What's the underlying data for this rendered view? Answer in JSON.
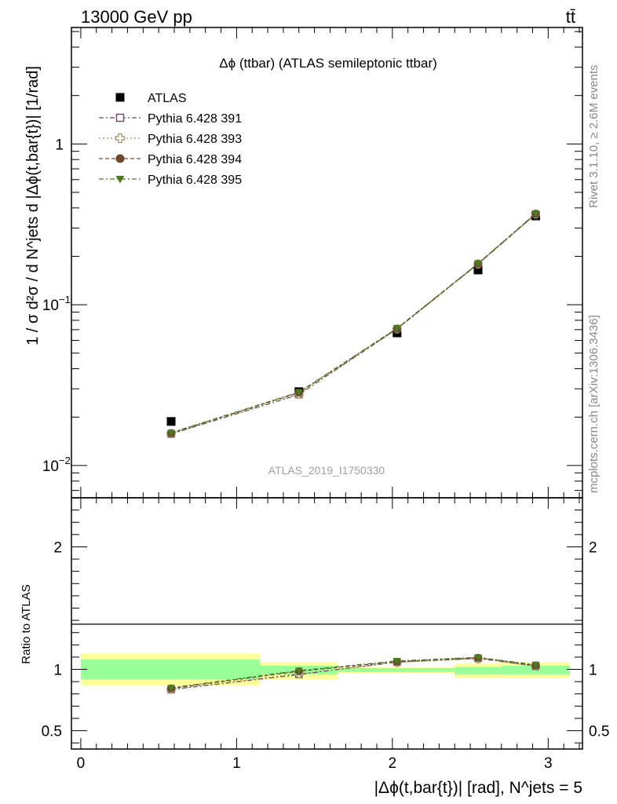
{
  "header": {
    "energy_label": "13000 GeV pp",
    "process_label": "tt̄"
  },
  "side_labels": {
    "rivet": "Rivet 3.1.10, ≥ 2.6M events",
    "mcplots": "mcplots.cern.ch [arXiv:1306.3436]"
  },
  "watermark": "ATLAS_2019_I1750330",
  "chart_data": [
    {
      "type": "scatter",
      "title": "Δϕ (ttbar) (ATLAS semileptonic ttbar)",
      "ylabel": "1 / σ d²σ / d N^jets d |Δϕ(t,bar{t})| [1/rad]",
      "xlabel": "",
      "yscale": "log",
      "xlim": [
        -0.06,
        3.22
      ],
      "ylim": [
        0.0063,
        5.3
      ],
      "ytick_labels": [
        {
          "value": 1,
          "label": "1"
        },
        {
          "value": 0.1,
          "label": "10",
          "exp": "−1"
        },
        {
          "value": 0.01,
          "label": "10",
          "exp": "−2"
        }
      ],
      "legend_position": "top-left",
      "x": [
        0.58,
        1.4,
        2.03,
        2.55,
        2.92
      ],
      "series": [
        {
          "name": "ATLAS",
          "marker": "filled-square",
          "color": "#000000",
          "line": false,
          "values": [
            0.0188,
            0.0288,
            0.0668,
            0.1645,
            0.3565
          ]
        },
        {
          "name": "Pythia 6.428 391",
          "marker": "open-square",
          "color": "#6e4759",
          "line": true,
          "dash": "6,3,2,3",
          "values": [
            0.0157,
            0.0276,
            0.0708,
            0.1792,
            0.3658
          ]
        },
        {
          "name": "Pythia 6.428 393",
          "marker": "open-cross",
          "color": "#9c8f66",
          "line": true,
          "dash": "2,3",
          "values": [
            0.0158,
            0.0278,
            0.0706,
            0.1788,
            0.366
          ]
        },
        {
          "name": "Pythia 6.428 394",
          "marker": "filled-circle",
          "color": "#6b4a2e",
          "line": true,
          "dash": "5,3",
          "values": [
            0.0159,
            0.0284,
            0.071,
            0.18,
            0.368
          ]
        },
        {
          "name": "Pythia 6.428 395",
          "marker": "filled-triangle-down",
          "color": "#4c7a1e",
          "line": true,
          "dash": "6,3,2,3",
          "values": [
            0.016,
            0.0286,
            0.0714,
            0.1806,
            0.37
          ]
        }
      ]
    },
    {
      "type": "scatter",
      "title": "",
      "ylabel": "Ratio to ATLAS",
      "xlabel": "|Δϕ(t,bar{t})| [rad], N^jets = 5",
      "ylim": [
        0.35,
        2.4
      ],
      "xlim": [
        -0.06,
        3.22
      ],
      "ytick_labels": [
        {
          "value": 2,
          "label": "2"
        },
        {
          "value": 1,
          "label": "1"
        },
        {
          "value": 0.5,
          "label": "0.5"
        }
      ],
      "xtick_labels": [
        {
          "value": 0,
          "label": "0"
        },
        {
          "value": 1,
          "label": "1"
        },
        {
          "value": 2,
          "label": "2"
        },
        {
          "value": 3,
          "label": "3"
        }
      ],
      "reference_line": 1,
      "uncertainty_bands": [
        {
          "xmin": 0.0,
          "xmax": 1.15,
          "stat_low": 0.92,
          "stat_high": 1.08,
          "tot_low": 0.87,
          "tot_high": 1.13
        },
        {
          "xmin": 1.15,
          "xmax": 1.65,
          "stat_low": 0.96,
          "stat_high": 1.03,
          "tot_low": 0.92,
          "tot_high": 1.06
        },
        {
          "xmin": 1.65,
          "xmax": 2.4,
          "stat_low": 0.98,
          "stat_high": 1.01,
          "tot_low": 0.97,
          "tot_high": 1.02
        },
        {
          "xmin": 2.4,
          "xmax": 2.7,
          "stat_low": 0.96,
          "stat_high": 1.02,
          "tot_low": 0.93,
          "tot_high": 1.05
        },
        {
          "xmin": 2.7,
          "xmax": 3.14,
          "stat_low": 0.96,
          "stat_high": 1.03,
          "tot_low": 0.93,
          "tot_high": 1.06
        }
      ],
      "x": [
        0.58,
        1.4,
        2.03,
        2.55,
        2.92
      ],
      "series": [
        {
          "name": "Pythia 6.428 391",
          "marker": "open-square",
          "color": "#6e4759",
          "values": [
            0.835,
            0.958,
            1.06,
            1.09,
            1.026
          ]
        },
        {
          "name": "Pythia 6.428 393",
          "marker": "open-cross",
          "color": "#9c8f66",
          "values": [
            0.838,
            0.965,
            1.057,
            1.087,
            1.027
          ]
        },
        {
          "name": "Pythia 6.428 394",
          "marker": "filled-circle",
          "color": "#6b4a2e",
          "values": [
            0.845,
            0.985,
            1.063,
            1.095,
            1.032
          ]
        },
        {
          "name": "Pythia 6.428 395",
          "marker": "filled-triangle-down",
          "color": "#4c7a1e",
          "values": [
            0.85,
            0.99,
            1.069,
            1.098,
            1.038
          ]
        }
      ]
    }
  ]
}
